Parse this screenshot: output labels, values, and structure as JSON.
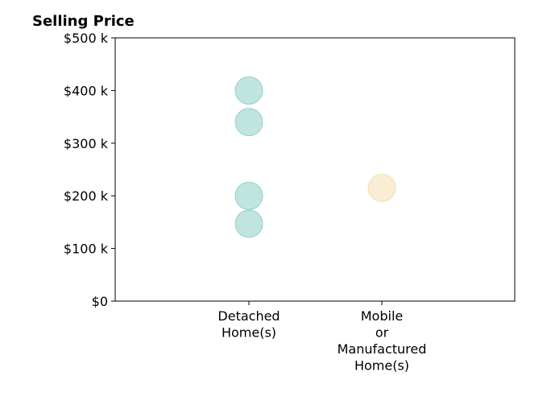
{
  "chart_data": {
    "type": "scatter",
    "title": "Selling Price",
    "xlabel": "",
    "ylabel": "",
    "categories": [
      [
        "Detached",
        "Home(s)"
      ],
      [
        "Mobile",
        "or",
        "Manufactured",
        "Home(s)"
      ]
    ],
    "y_ticks": [
      "$0",
      "$100 k",
      "$200 k",
      "$300 k",
      "$400 k",
      "$500 k"
    ],
    "ylim": [
      0,
      500000
    ],
    "grid": false,
    "series": [
      {
        "category_index": 0,
        "color": "#8ccdc5",
        "values": [
          400000,
          340000,
          200000,
          147000
        ]
      },
      {
        "category_index": 1,
        "color": "#f5deb0",
        "values": [
          215000
        ]
      }
    ]
  }
}
